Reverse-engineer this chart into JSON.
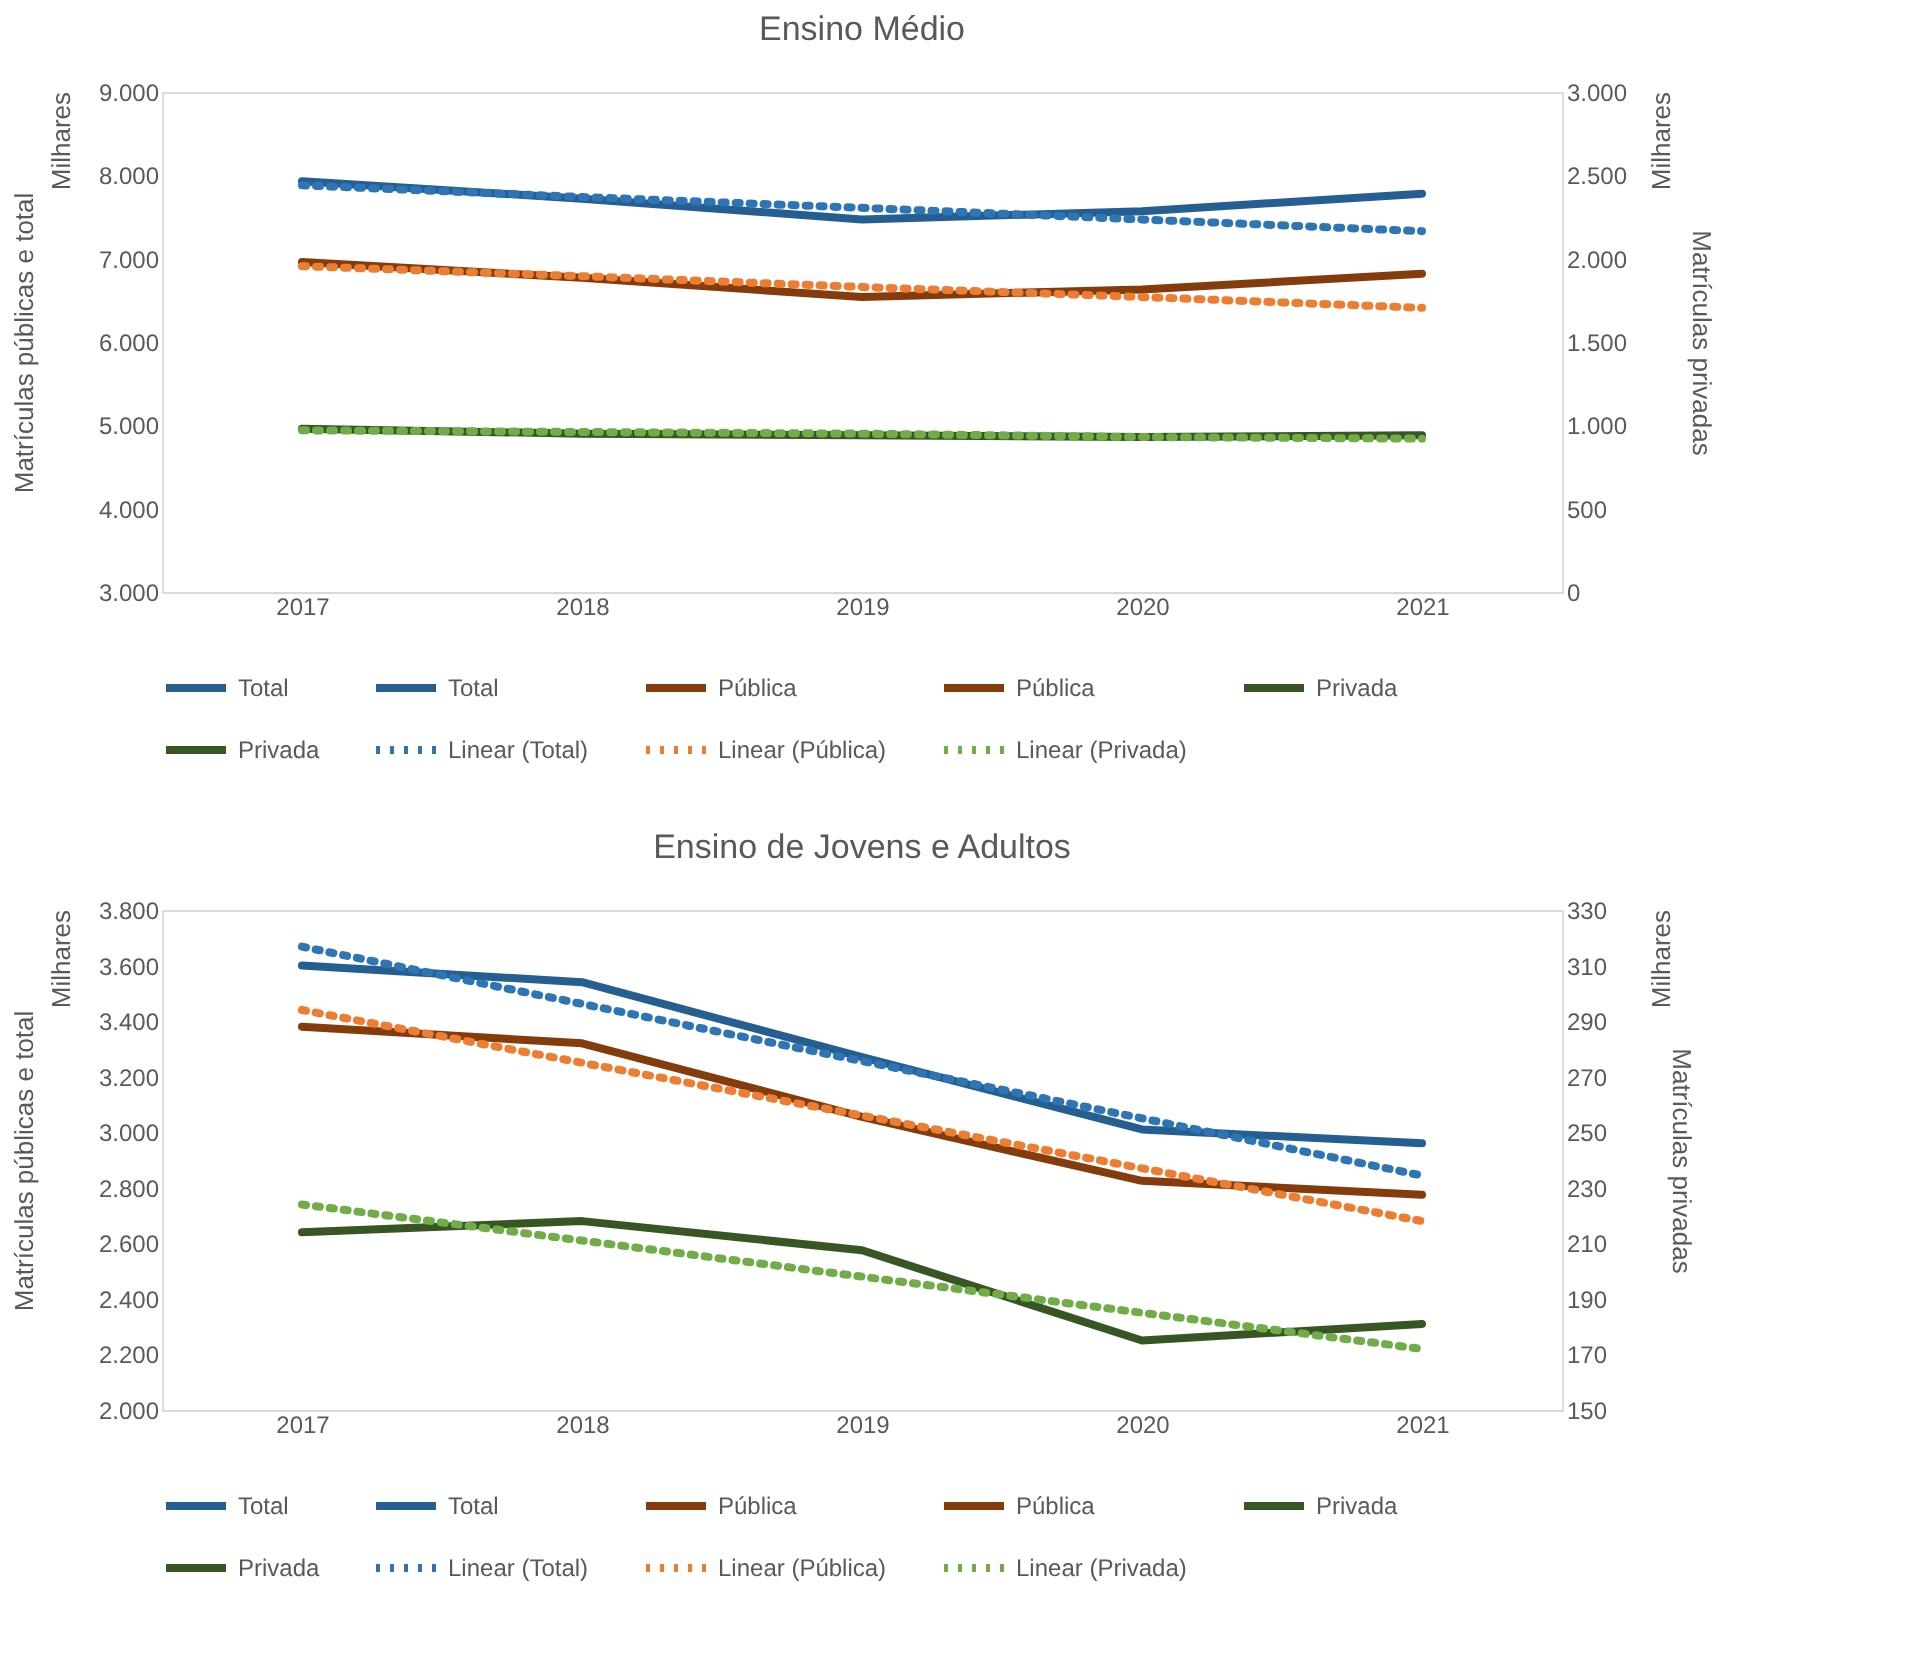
{
  "chart_data": [
    {
      "type": "line",
      "title": "Ensino Médio",
      "ylabel": "Matrículas públicas e total",
      "y2label": "Matrículas privadas",
      "annotations": [
        "Milhares",
        "Milhares"
      ],
      "categories": [
        "2017",
        "2018",
        "2019",
        "2020",
        "2021"
      ],
      "ylim": [
        3000,
        9000
      ],
      "yticks": [
        {
          "value": 3000,
          "label": "3.000"
        },
        {
          "value": 4000,
          "label": "4.000"
        },
        {
          "value": 5000,
          "label": "5.000"
        },
        {
          "value": 6000,
          "label": "6.000"
        },
        {
          "value": 7000,
          "label": "7.000"
        },
        {
          "value": 8000,
          "label": "8.000"
        },
        {
          "value": 9000,
          "label": "9.000"
        }
      ],
      "y2lim": [
        0,
        3000
      ],
      "y2ticks": [
        0,
        500,
        {
          "value": 1000,
          "label": "1.000"
        },
        {
          "value": 1500,
          "label": "1.500"
        },
        {
          "value": 2000,
          "label": "2.000"
        },
        {
          "value": 2500,
          "label": "2.500"
        },
        {
          "value": 3000,
          "label": "3.000"
        }
      ],
      "grid": false,
      "legend": "bottom",
      "marker": "none",
      "series": [
        {
          "name": "Total",
          "color": "#255e91",
          "line_style": "solid",
          "values": [
            7930,
            7720,
            7470,
            7570,
            7780
          ]
        },
        {
          "name": "Total",
          "color": "#255e91",
          "line_style": "solid",
          "values": [
            null,
            null,
            null,
            null,
            null
          ]
        },
        {
          "name": "Pública",
          "color": "#843c0c",
          "line_style": "solid",
          "values": [
            6960,
            6770,
            6540,
            6630,
            6820
          ]
        },
        {
          "name": "Pública",
          "color": "#843c0c",
          "line_style": "solid",
          "values": [
            null,
            null,
            null,
            null,
            null
          ]
        },
        {
          "name": "Privada",
          "color": "#375623",
          "line_style": "solid",
          "axis": "y2",
          "values": [
            980,
            950,
            940,
            930,
            940
          ]
        },
        {
          "name": "Privada",
          "color": "#375623",
          "line_style": "solid",
          "axis": "y2",
          "values": [
            null,
            null,
            null,
            null,
            null
          ]
        },
        {
          "name": "Linear (Total)",
          "color": "#2e75b6",
          "line_style": "dotted",
          "values": [
            7880,
            7740,
            7610,
            7470,
            7330
          ]
        },
        {
          "name": "Linear (Pública)",
          "color": "#ed7d31",
          "line_style": "dotted",
          "values": [
            6910,
            6790,
            6660,
            6540,
            6410
          ]
        },
        {
          "name": "Linear (Privada)",
          "color": "#70ad47",
          "line_style": "dotted",
          "axis": "y2",
          "values": [
            970,
            960,
            950,
            930,
            920
          ]
        }
      ]
    },
    {
      "type": "line",
      "title": "Ensino de Jovens e Adultos",
      "ylabel": "Matrículas públicas e total",
      "y2label": "Matrículas privadas",
      "annotations": [
        "Milhares",
        "Milhares"
      ],
      "categories": [
        "2017",
        "2018",
        "2019",
        "2020",
        "2021"
      ],
      "ylim": [
        2000,
        3800
      ],
      "yticks": [
        {
          "value": 2000,
          "label": "2.000"
        },
        {
          "value": 2200,
          "label": "2.200"
        },
        {
          "value": 2400,
          "label": "2.400"
        },
        {
          "value": 2600,
          "label": "2.600"
        },
        {
          "value": 2800,
          "label": "2.800"
        },
        {
          "value": 3000,
          "label": "3.000"
        },
        {
          "value": 3200,
          "label": "3.200"
        },
        {
          "value": 3400,
          "label": "3.400"
        },
        {
          "value": 3600,
          "label": "3.600"
        },
        {
          "value": 3800,
          "label": "3.800"
        }
      ],
      "y2lim": [
        150,
        330
      ],
      "y2ticks": [
        150,
        170,
        190,
        210,
        230,
        250,
        270,
        290,
        310,
        330
      ],
      "grid": false,
      "legend": "bottom",
      "marker": "none",
      "series": [
        {
          "name": "Total",
          "color": "#255e91",
          "line_style": "solid",
          "values": [
            3600,
            3540,
            3270,
            3010,
            2960
          ]
        },
        {
          "name": "Total",
          "color": "#255e91",
          "line_style": "solid",
          "values": [
            null,
            null,
            null,
            null,
            null
          ]
        },
        {
          "name": "Pública",
          "color": "#843c0c",
          "line_style": "solid",
          "values": [
            3380,
            3320,
            3055,
            2825,
            2775
          ]
        },
        {
          "name": "Pública",
          "color": "#843c0c",
          "line_style": "solid",
          "values": [
            null,
            null,
            null,
            null,
            null
          ]
        },
        {
          "name": "Privada",
          "color": "#375623",
          "line_style": "solid",
          "axis": "y2",
          "values": [
            214,
            218,
            207.5,
            175,
            181
          ]
        },
        {
          "name": "Privada",
          "color": "#375623",
          "line_style": "solid",
          "axis": "y2",
          "values": [
            null,
            null,
            null,
            null,
            null
          ]
        },
        {
          "name": "Linear (Total)",
          "color": "#2e75b6",
          "line_style": "dotted",
          "values": [
            3668,
            3462,
            3256,
            3050,
            2844
          ]
        },
        {
          "name": "Linear (Pública)",
          "color": "#ed7d31",
          "line_style": "dotted",
          "values": [
            3440,
            3250,
            3060,
            2870,
            2680
          ]
        },
        {
          "name": "Linear (Privada)",
          "color": "#70ad47",
          "line_style": "dotted",
          "axis": "y2",
          "values": [
            224,
            211,
            198,
            185,
            172
          ]
        }
      ]
    }
  ]
}
